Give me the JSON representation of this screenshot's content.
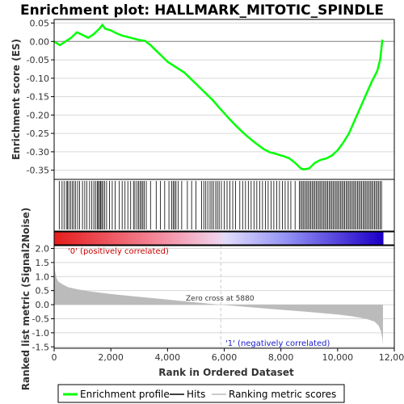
{
  "title": "Enrichment plot: HALLMARK_MITOTIC_SPINDLE",
  "colors": {
    "es_line": "#00ff00",
    "hits": "#000000",
    "metric_fill": "#bbbbbb",
    "zero_cross_line": "#cccccc",
    "positive_label": "#cc0000",
    "negative_label": "#1a1acc",
    "grid": "#d8d8d8",
    "frame": "#000000"
  },
  "annotations": {
    "positive": "'0' (positively correlated)",
    "negative": "'1' (negatively correlated)",
    "zero_cross": "Zero cross at 5880"
  },
  "legend": {
    "items": [
      {
        "label": "Enrichment profile",
        "color": "#00ff00"
      },
      {
        "label": "Hits",
        "color": "#000000"
      },
      {
        "label": "Ranking metric scores",
        "color": "#bbbbbb"
      }
    ]
  },
  "chart_data": [
    {
      "type": "line",
      "name": "enrichment-profile",
      "title": "Enrichment plot: HALLMARK_MITOTIC_SPINDLE",
      "ylabel": "Enrichment score (ES)",
      "xlim": [
        0,
        12000
      ],
      "ylim": [
        -0.375,
        0.06
      ],
      "yticks": [
        0.05,
        0.0,
        -0.05,
        -0.1,
        -0.15,
        -0.2,
        -0.25,
        -0.3,
        -0.35
      ],
      "ytick_labels": [
        "0.05",
        "0.00",
        "-0.05",
        "-0.10",
        "-0.15",
        "-0.20",
        "-0.25",
        "-0.30",
        "-0.35"
      ],
      "grid": true,
      "x": [
        0,
        200,
        400,
        600,
        800,
        1000,
        1200,
        1400,
        1600,
        1700,
        1800,
        2000,
        2200,
        2400,
        2600,
        2800,
        3000,
        3200,
        3400,
        3600,
        3800,
        4000,
        4200,
        4400,
        4600,
        4800,
        5000,
        5200,
        5400,
        5600,
        5800,
        6000,
        6200,
        6400,
        6600,
        6800,
        7000,
        7200,
        7400,
        7600,
        7800,
        8000,
        8100,
        8300,
        8500,
        8700,
        8800,
        9000,
        9200,
        9400,
        9600,
        9800,
        10000,
        10200,
        10400,
        10600,
        10800,
        11000,
        11200,
        11400,
        11500,
        11580
      ],
      "y": [
        0.0,
        -0.01,
        0.0,
        0.01,
        0.025,
        0.018,
        0.01,
        0.02,
        0.035,
        0.045,
        0.035,
        0.03,
        0.022,
        0.016,
        0.012,
        0.008,
        0.004,
        0.002,
        -0.01,
        -0.025,
        -0.04,
        -0.055,
        -0.065,
        -0.075,
        -0.085,
        -0.1,
        -0.115,
        -0.13,
        -0.145,
        -0.16,
        -0.178,
        -0.195,
        -0.212,
        -0.228,
        -0.243,
        -0.257,
        -0.27,
        -0.282,
        -0.293,
        -0.301,
        -0.305,
        -0.31,
        -0.312,
        -0.318,
        -0.33,
        -0.345,
        -0.348,
        -0.345,
        -0.33,
        -0.322,
        -0.318,
        -0.31,
        -0.296,
        -0.275,
        -0.25,
        -0.215,
        -0.18,
        -0.145,
        -0.11,
        -0.08,
        -0.05,
        0.005
      ]
    },
    {
      "type": "scatter",
      "name": "hits",
      "xlim": [
        0,
        12000
      ],
      "x": [
        180,
        280,
        350,
        430,
        470,
        520,
        580,
        640,
        700,
        760,
        830,
        900,
        1000,
        1080,
        1150,
        1250,
        1330,
        1400,
        1460,
        1520,
        1560,
        1600,
        1640,
        1680,
        1720,
        1780,
        1850,
        1950,
        2050,
        2150,
        2300,
        2400,
        2500,
        2600,
        2700,
        2800,
        2850,
        2920,
        2980,
        3030,
        3080,
        3130,
        3180,
        3250,
        3400,
        3600,
        3750,
        3900,
        4050,
        4150,
        4200,
        4250,
        4300,
        4380,
        4500,
        4700,
        4850,
        5000,
        5200,
        5280,
        5350,
        5420,
        5500,
        5560,
        5620,
        5700,
        5760,
        5820,
        5900,
        6000,
        6100,
        6200,
        6300,
        6400,
        6550,
        6650,
        6750,
        6850,
        6950,
        7050,
        7150,
        7250,
        7350,
        7450,
        7550,
        7650,
        7750,
        7850,
        7950,
        8050,
        8150,
        8250,
        8350,
        8500,
        8650,
        8700,
        8750,
        8800,
        8850,
        8900,
        8950,
        9000,
        9050,
        9100,
        9150,
        9200,
        9250,
        9300,
        9350,
        9400,
        9450,
        9500,
        9550,
        9600,
        9650,
        9700,
        9750,
        9800,
        9850,
        9900,
        9950,
        10000,
        10050,
        10100,
        10150,
        10200,
        10250,
        10300,
        10350,
        10400,
        10450,
        10500,
        10550,
        10600,
        10650,
        10700,
        10750,
        10800,
        10850,
        10900,
        10950,
        11000,
        11050,
        11100,
        11150,
        11200,
        11250,
        11300,
        11350,
        11400,
        11450,
        11500,
        11550
      ]
    },
    {
      "type": "area",
      "name": "ranked-list-metric",
      "xlabel": "Rank in Ordered Dataset",
      "ylabel": "Ranked list metric (Signal2Noise)",
      "xlim": [
        0,
        12000
      ],
      "ylim": [
        -1.55,
        2.1
      ],
      "xticks": [
        0,
        2000,
        4000,
        6000,
        8000,
        10000,
        12000
      ],
      "xtick_labels": [
        "0",
        "2,000",
        "4,000",
        "6,000",
        "8,000",
        "10,000",
        "12,000"
      ],
      "yticks": [
        2.0,
        1.5,
        1.0,
        0.5,
        0.0,
        -0.5,
        -1.0,
        -1.5
      ],
      "ytick_labels": [
        "2.0",
        "1.5",
        "1.0",
        "0.5",
        "0.0",
        "-0.5",
        "-1.0",
        "-1.5"
      ],
      "zero_cross": 5880,
      "x": [
        0,
        30,
        80,
        150,
        300,
        500,
        800,
        1200,
        2000,
        3000,
        4000,
        5000,
        5880,
        7000,
        8000,
        9000,
        10000,
        10500,
        11000,
        11300,
        11450,
        11530,
        11580,
        11600
      ],
      "y": [
        1.85,
        1.2,
        0.95,
        0.82,
        0.72,
        0.62,
        0.55,
        0.48,
        0.38,
        0.28,
        0.18,
        0.08,
        0.0,
        -0.1,
        -0.18,
        -0.26,
        -0.35,
        -0.41,
        -0.5,
        -0.6,
        -0.75,
        -0.95,
        -1.2,
        -1.45
      ]
    }
  ]
}
